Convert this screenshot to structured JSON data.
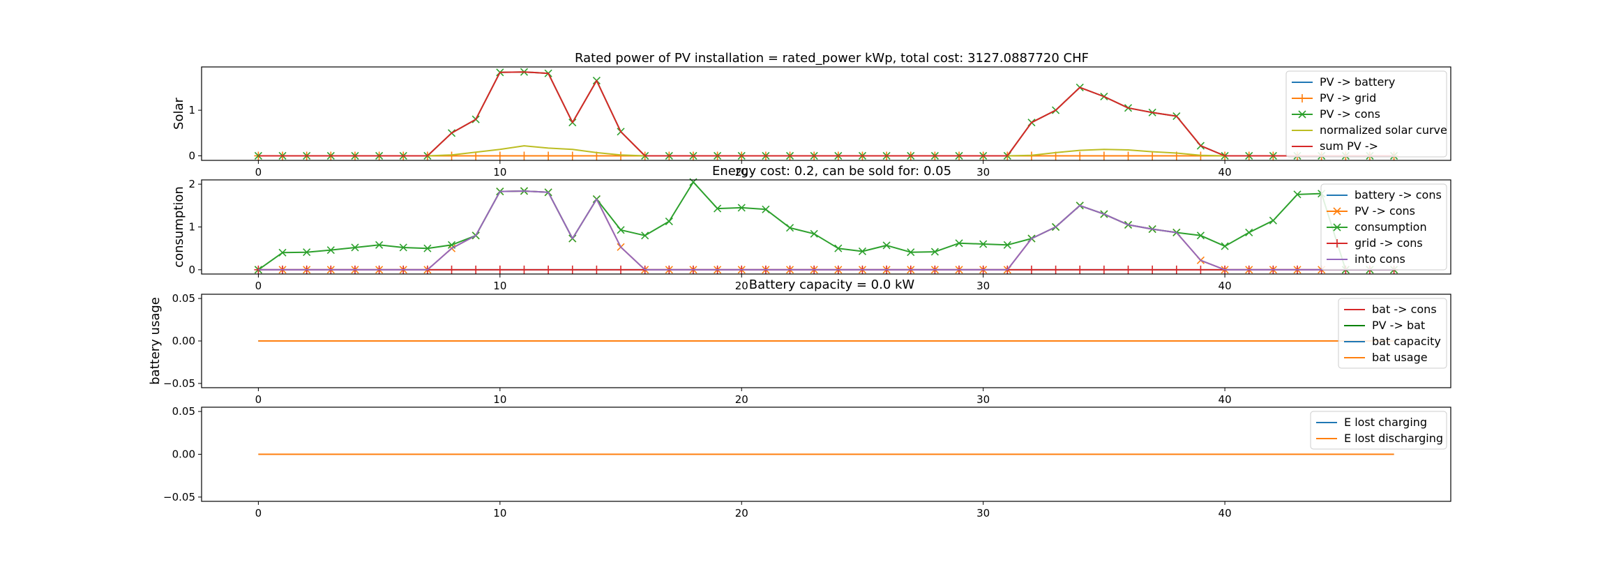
{
  "figure": {
    "title": "Rated power of PV installation = rated_power kWp, total cost: 3127.0887720 CHF"
  },
  "chart_data": [
    {
      "type": "line",
      "title": "Rated power of PV installation = rated_power kWp, total cost: 3127.0887720 CHF",
      "xlabel": "",
      "ylabel": "Solar",
      "xlim": [
        -2.35,
        49.35
      ],
      "ylim": [
        -0.1,
        1.95
      ],
      "xticks": [
        0,
        10,
        20,
        30,
        40
      ],
      "yticks": [
        0,
        1
      ],
      "ytick_labels": [
        "0",
        "1"
      ],
      "legend_position": "upper-right",
      "grid": false,
      "x": [
        0,
        1,
        2,
        3,
        4,
        5,
        6,
        7,
        8,
        9,
        10,
        11,
        12,
        13,
        14,
        15,
        16,
        17,
        18,
        19,
        20,
        21,
        22,
        23,
        24,
        25,
        26,
        27,
        28,
        29,
        30,
        31,
        32,
        33,
        34,
        35,
        36,
        37,
        38,
        39,
        40,
        41,
        42,
        43,
        44,
        45,
        46,
        47
      ],
      "series": [
        {
          "name": "PV -> battery",
          "color": "#1f77b4",
          "marker": "none",
          "values": [
            0,
            0,
            0,
            0,
            0,
            0,
            0,
            0,
            0,
            0,
            0,
            0,
            0,
            0,
            0,
            0,
            0,
            0,
            0,
            0,
            0,
            0,
            0,
            0,
            0,
            0,
            0,
            0,
            0,
            0,
            0,
            0,
            0,
            0,
            0,
            0,
            0,
            0,
            0,
            0,
            0,
            0,
            0,
            0,
            0,
            0,
            0,
            0
          ]
        },
        {
          "name": "PV -> grid",
          "color": "#ff7f0e",
          "marker": "plus",
          "values": [
            0,
            0,
            0,
            0,
            0,
            0,
            0,
            0,
            0,
            0,
            0,
            0,
            0,
            0,
            0,
            0,
            0,
            0,
            0,
            0,
            0,
            0,
            0,
            0,
            0,
            0,
            0,
            0,
            0,
            0,
            0,
            0,
            0,
            0,
            0,
            0,
            0,
            0,
            0,
            0,
            0,
            0,
            0,
            0,
            0,
            0,
            0,
            0
          ]
        },
        {
          "name": "PV -> cons",
          "color": "#2ca02c",
          "marker": "x",
          "values": [
            0,
            0,
            0,
            0,
            0,
            0,
            0,
            0,
            0.5,
            0.8,
            1.83,
            1.84,
            1.81,
            0.73,
            1.65,
            0.53,
            0,
            0,
            0,
            0,
            0,
            0,
            0,
            0,
            0,
            0,
            0,
            0,
            0,
            0,
            0,
            0,
            0.73,
            1.0,
            1.5,
            1.3,
            1.05,
            0.95,
            0.87,
            0.22,
            0,
            0,
            0,
            0,
            0,
            0,
            0,
            0
          ]
        },
        {
          "name": "normalized solar curve",
          "color": "#bcbd22",
          "marker": "none",
          "values": [
            0,
            0,
            0,
            0,
            0,
            0,
            0,
            0,
            0.02,
            0.08,
            0.14,
            0.22,
            0.17,
            0.14,
            0.07,
            0.02,
            0,
            0,
            0,
            0,
            0,
            0,
            0,
            0,
            0,
            0,
            0,
            0,
            0,
            0,
            0,
            0,
            0.01,
            0.07,
            0.12,
            0.14,
            0.13,
            0.09,
            0.06,
            0.01,
            0,
            0,
            0,
            0,
            0,
            0,
            0,
            0
          ]
        },
        {
          "name": "sum PV ->",
          "color": "#d62728",
          "marker": "none",
          "values": [
            0,
            0,
            0,
            0,
            0,
            0,
            0,
            0,
            0.5,
            0.8,
            1.83,
            1.84,
            1.81,
            0.73,
            1.65,
            0.53,
            0,
            0,
            0,
            0,
            0,
            0,
            0,
            0,
            0,
            0,
            0,
            0,
            0,
            0,
            0,
            0,
            0.73,
            1.0,
            1.5,
            1.3,
            1.05,
            0.95,
            0.87,
            0.22,
            0,
            0,
            0,
            0,
            0,
            0,
            0,
            0
          ]
        }
      ]
    },
    {
      "type": "line",
      "title": "Energy cost: 0.2, can be sold for: 0.05",
      "xlabel": "",
      "ylabel": "consumption",
      "xlim": [
        -2.35,
        49.35
      ],
      "ylim": [
        -0.1,
        2.1
      ],
      "xticks": [
        0,
        10,
        20,
        30,
        40
      ],
      "yticks": [
        0,
        1,
        2
      ],
      "ytick_labels": [
        "0",
        "1",
        "2"
      ],
      "legend_position": "upper-right",
      "grid": false,
      "x": [
        0,
        1,
        2,
        3,
        4,
        5,
        6,
        7,
        8,
        9,
        10,
        11,
        12,
        13,
        14,
        15,
        16,
        17,
        18,
        19,
        20,
        21,
        22,
        23,
        24,
        25,
        26,
        27,
        28,
        29,
        30,
        31,
        32,
        33,
        34,
        35,
        36,
        37,
        38,
        39,
        40,
        41,
        42,
        43,
        44,
        45,
        46,
        47
      ],
      "series": [
        {
          "name": "battery -> cons",
          "color": "#1f77b4",
          "marker": "none",
          "values": [
            0,
            0,
            0,
            0,
            0,
            0,
            0,
            0,
            0,
            0,
            0,
            0,
            0,
            0,
            0,
            0,
            0,
            0,
            0,
            0,
            0,
            0,
            0,
            0,
            0,
            0,
            0,
            0,
            0,
            0,
            0,
            0,
            0,
            0,
            0,
            0,
            0,
            0,
            0,
            0,
            0,
            0,
            0,
            0,
            0,
            0,
            0,
            0
          ]
        },
        {
          "name": "PV -> cons",
          "color": "#ff7f0e",
          "marker": "x",
          "values": [
            0,
            0,
            0,
            0,
            0,
            0,
            0,
            0,
            0.5,
            0.8,
            1.83,
            1.84,
            1.81,
            0.73,
            1.65,
            0.53,
            0,
            0,
            0,
            0,
            0,
            0,
            0,
            0,
            0,
            0,
            0,
            0,
            0,
            0,
            0,
            0,
            0.73,
            1.0,
            1.5,
            1.3,
            1.05,
            0.95,
            0.87,
            0.22,
            0,
            0,
            0,
            0,
            0,
            0,
            0,
            0
          ]
        },
        {
          "name": "consumption",
          "color": "#2ca02c",
          "marker": "x",
          "values": [
            0,
            0.4,
            0.41,
            0.46,
            0.52,
            0.58,
            0.52,
            0.5,
            0.58,
            0.8,
            1.83,
            1.84,
            1.81,
            0.73,
            1.65,
            0.93,
            0.8,
            1.13,
            2.05,
            1.43,
            1.45,
            1.41,
            0.98,
            0.84,
            0.5,
            0.43,
            0.57,
            0.41,
            0.42,
            0.62,
            0.6,
            0.58,
            0.73,
            1.0,
            1.5,
            1.3,
            1.05,
            0.95,
            0.87,
            0.8,
            0.55,
            0.87,
            1.15,
            1.76,
            1.78,
            0,
            0,
            0
          ]
        },
        {
          "name": "grid -> cons",
          "color": "#d62728",
          "marker": "plus",
          "values": [
            0,
            0,
            0,
            0,
            0,
            0,
            0,
            0,
            0,
            0,
            0,
            0,
            0,
            0,
            0,
            0,
            0,
            0,
            0,
            0,
            0,
            0,
            0,
            0,
            0,
            0,
            0,
            0,
            0,
            0,
            0,
            0,
            0,
            0,
            0,
            0,
            0,
            0,
            0,
            0,
            0,
            0,
            0,
            0,
            0,
            0,
            0,
            0
          ]
        },
        {
          "name": "into cons",
          "color": "#9467bd",
          "marker": "none",
          "values": [
            0,
            0,
            0,
            0,
            0,
            0,
            0,
            0,
            0.5,
            0.8,
            1.83,
            1.84,
            1.81,
            0.73,
            1.65,
            0.53,
            0,
            0,
            0,
            0,
            0,
            0,
            0,
            0,
            0,
            0,
            0,
            0,
            0,
            0,
            0,
            0,
            0.73,
            1.0,
            1.5,
            1.3,
            1.05,
            0.95,
            0.87,
            0.22,
            0,
            0,
            0,
            0,
            0,
            0,
            0,
            0
          ]
        }
      ]
    },
    {
      "type": "line",
      "title": "Battery capacity = 0.0 kW",
      "xlabel": "",
      "ylabel": "battery usage",
      "xlim": [
        -2.35,
        49.35
      ],
      "ylim": [
        -0.055,
        0.055
      ],
      "xticks": [
        0,
        10,
        20,
        30,
        40
      ],
      "yticks": [
        -0.05,
        0,
        0.05
      ],
      "ytick_labels": [
        "−0.05",
        "0.00",
        "0.05"
      ],
      "legend_position": "upper-right",
      "grid": false,
      "x": [
        0,
        47
      ],
      "series": [
        {
          "name": "bat -> cons",
          "color": "#d62728",
          "marker": "none",
          "values": [
            0,
            0
          ]
        },
        {
          "name": "PV -> bat",
          "color": "#008000",
          "marker": "none",
          "values": [
            0,
            0
          ]
        },
        {
          "name": "bat capacity",
          "color": "#1f77b4",
          "marker": "none",
          "values": [
            0,
            0
          ]
        },
        {
          "name": "bat usage",
          "color": "#ff7f0e",
          "marker": "none",
          "values": [
            0,
            0
          ]
        }
      ]
    },
    {
      "type": "line",
      "title": "",
      "xlabel": "",
      "ylabel": "",
      "xlim": [
        -2.35,
        49.35
      ],
      "ylim": [
        -0.055,
        0.055
      ],
      "xticks": [
        0,
        10,
        20,
        30,
        40
      ],
      "yticks": [
        -0.05,
        0,
        0.05
      ],
      "ytick_labels": [
        "−0.05",
        "0.00",
        "0.05"
      ],
      "legend_position": "upper-right",
      "grid": false,
      "x": [
        0,
        47
      ],
      "series": [
        {
          "name": "E lost charging",
          "color": "#1f77b4",
          "marker": "none",
          "values": [
            0,
            0
          ]
        },
        {
          "name": "E lost discharging",
          "color": "#ff7f0e",
          "marker": "none",
          "values": [
            0,
            0
          ]
        }
      ]
    }
  ]
}
